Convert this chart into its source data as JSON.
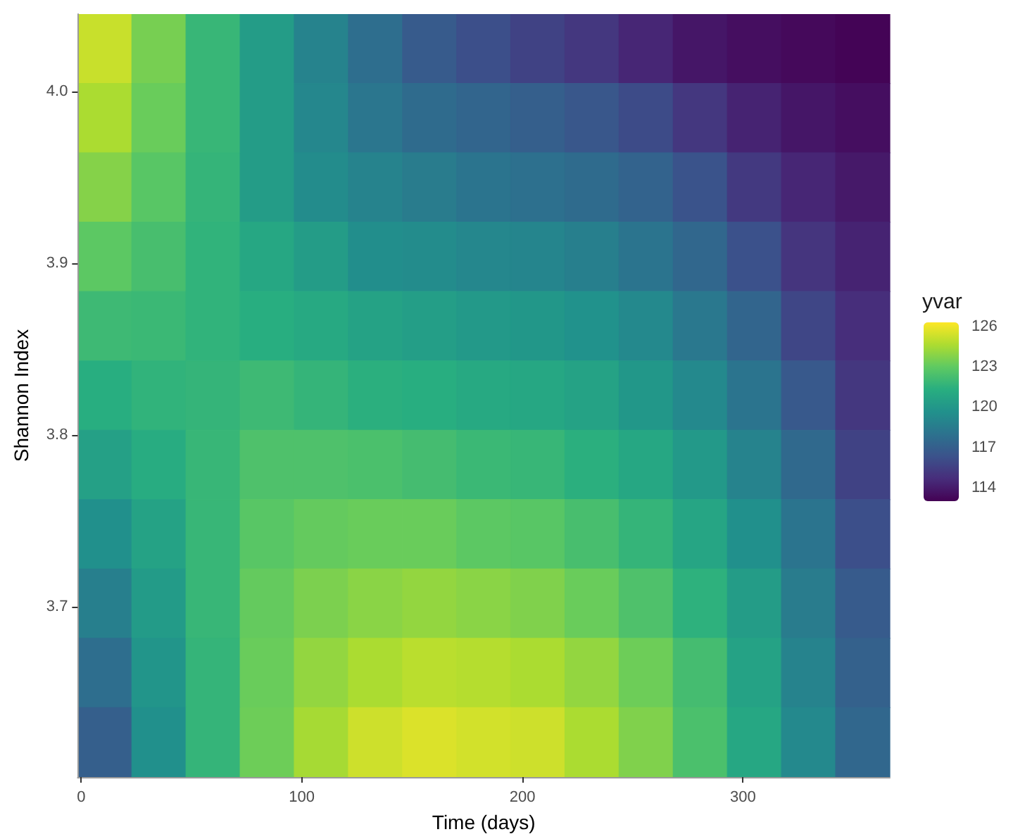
{
  "chart_data": {
    "type": "heatmap",
    "xlabel": "Time (days)",
    "ylabel": "Shannon Index",
    "clabel": "yvar",
    "x": [
      10.7,
      35.2,
      59.8,
      84.3,
      108.9,
      133.4,
      158.0,
      182.5,
      207.0,
      231.6,
      256.1,
      280.7,
      305.2,
      329.8,
      354.3
    ],
    "xlim": [
      -1.6,
      366.6
    ],
    "xticks": [
      0,
      100,
      200,
      300
    ],
    "ylim": [
      3.601,
      4.045
    ],
    "yticks": [
      3.7,
      3.8,
      3.9,
      {
        "value": 4,
        "label": "4.0"
      }
    ],
    "clim": [
      113.0,
      126.3
    ],
    "cticks": [
      114,
      117,
      120,
      123,
      126
    ],
    "cells": [
      [
        125.2,
        123.5,
        121.8,
        120.3,
        118.9,
        117.8,
        116.8,
        116.2,
        115.6,
        115.1,
        114.4,
        113.8,
        113.5,
        113.3,
        113.1
      ],
      [
        124.6,
        123.2,
        121.8,
        120.3,
        119.1,
        118.2,
        117.6,
        117.3,
        117.0,
        116.6,
        116.0,
        115.1,
        114.3,
        113.8,
        113.5
      ],
      [
        123.8,
        122.8,
        121.7,
        120.3,
        119.4,
        118.9,
        118.5,
        118.1,
        117.9,
        117.6,
        117.2,
        116.4,
        115.2,
        114.4,
        113.9
      ],
      [
        122.9,
        122.3,
        121.6,
        120.9,
        120.3,
        119.5,
        119.4,
        119.1,
        119.0,
        118.7,
        118.1,
        117.4,
        116.3,
        115.0,
        114.3
      ],
      [
        122.0,
        121.9,
        121.6,
        121.3,
        121.0,
        120.6,
        120.4,
        120.1,
        120.0,
        119.7,
        119.2,
        118.3,
        117.3,
        115.8,
        114.7
      ],
      [
        121.3,
        121.6,
        121.7,
        122.0,
        121.7,
        121.4,
        121.3,
        121.0,
        120.9,
        120.6,
        120.0,
        119.2,
        118.1,
        116.7,
        115.1
      ],
      [
        120.5,
        121.2,
        121.8,
        122.5,
        122.5,
        122.4,
        122.2,
        121.9,
        121.8,
        121.4,
        120.9,
        120.1,
        118.9,
        117.5,
        115.6
      ],
      [
        119.6,
        120.6,
        121.8,
        122.8,
        123.1,
        123.2,
        123.2,
        122.9,
        122.8,
        122.3,
        121.7,
        120.8,
        119.6,
        118.1,
        116.2
      ],
      [
        118.7,
        120.2,
        121.8,
        123.1,
        123.6,
        123.9,
        124.1,
        123.9,
        123.7,
        123.2,
        122.5,
        121.5,
        120.3,
        118.5,
        116.8
      ],
      [
        117.8,
        119.9,
        121.7,
        123.2,
        124.1,
        124.6,
        124.9,
        124.8,
        124.6,
        124.1,
        123.3,
        122.2,
        120.6,
        118.9,
        117.1
      ],
      [
        117.0,
        119.6,
        121.7,
        123.3,
        124.5,
        125.3,
        125.6,
        125.4,
        125.3,
        124.6,
        123.7,
        122.4,
        120.9,
        119.2,
        117.4
      ]
    ]
  }
}
